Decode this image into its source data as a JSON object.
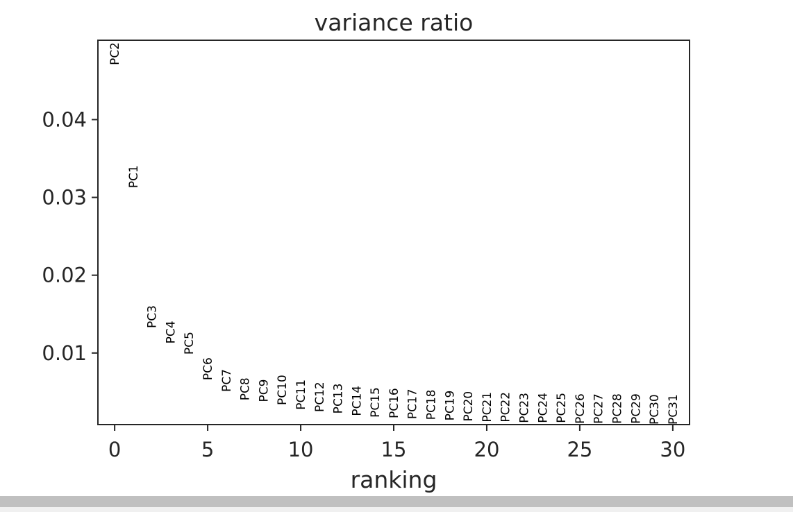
{
  "chart_data": {
    "type": "scatter",
    "title": "variance ratio",
    "xlabel": "ranking",
    "ylabel": "",
    "xlim": [
      -0.9,
      30.9
    ],
    "ylim": [
      0.0008,
      0.0502
    ],
    "xticks": [
      0,
      5,
      10,
      15,
      20,
      25,
      30
    ],
    "xtick_labels": [
      "0",
      "5",
      "10",
      "15",
      "20",
      "25",
      "30"
    ],
    "yticks": [
      0.01,
      0.02,
      0.03,
      0.04
    ],
    "ytick_labels": [
      "0.01",
      "0.02",
      "0.03",
      "0.04"
    ],
    "grid": false,
    "points": [
      {
        "label": "PC2",
        "x": 0,
        "y": 0.047
      },
      {
        "label": "PC1",
        "x": 1,
        "y": 0.0312
      },
      {
        "label": "PC3",
        "x": 2,
        "y": 0.0132
      },
      {
        "label": "PC4",
        "x": 3,
        "y": 0.0112
      },
      {
        "label": "PC5",
        "x": 4,
        "y": 0.0098
      },
      {
        "label": "PC6",
        "x": 5,
        "y": 0.0065
      },
      {
        "label": "PC7",
        "x": 6,
        "y": 0.005
      },
      {
        "label": "PC8",
        "x": 7,
        "y": 0.0039
      },
      {
        "label": "PC9",
        "x": 8,
        "y": 0.0037
      },
      {
        "label": "PC10",
        "x": 9,
        "y": 0.0033
      },
      {
        "label": "PC11",
        "x": 10,
        "y": 0.0027
      },
      {
        "label": "PC12",
        "x": 11,
        "y": 0.0024
      },
      {
        "label": "PC13",
        "x": 12,
        "y": 0.0022
      },
      {
        "label": "PC14",
        "x": 13,
        "y": 0.0019
      },
      {
        "label": "PC15",
        "x": 14,
        "y": 0.0017
      },
      {
        "label": "PC16",
        "x": 15,
        "y": 0.0016
      },
      {
        "label": "PC17",
        "x": 16,
        "y": 0.0015
      },
      {
        "label": "PC18",
        "x": 17,
        "y": 0.0014
      },
      {
        "label": "PC19",
        "x": 18,
        "y": 0.0013
      },
      {
        "label": "PC20",
        "x": 19,
        "y": 0.0012
      },
      {
        "label": "PC21",
        "x": 20,
        "y": 0.0011
      },
      {
        "label": "PC22",
        "x": 21,
        "y": 0.0011
      },
      {
        "label": "PC23",
        "x": 22,
        "y": 0.001
      },
      {
        "label": "PC24",
        "x": 23,
        "y": 0.001
      },
      {
        "label": "PC25",
        "x": 24,
        "y": 0.001
      },
      {
        "label": "PC26",
        "x": 25,
        "y": 0.0009
      },
      {
        "label": "PC27",
        "x": 26,
        "y": 0.0009
      },
      {
        "label": "PC28",
        "x": 27,
        "y": 0.0009
      },
      {
        "label": "PC29",
        "x": 28,
        "y": 0.0009
      },
      {
        "label": "PC30",
        "x": 29,
        "y": 0.0008
      },
      {
        "label": "PC31",
        "x": 30,
        "y": 0.0008
      }
    ]
  }
}
